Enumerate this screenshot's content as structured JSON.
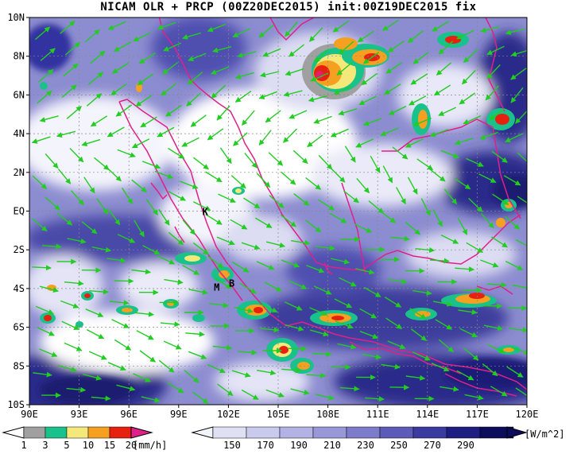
{
  "title": "NICAM OLR + PRCP (00Z20DEC2015) init:00Z19DEC2015 fix",
  "map": {
    "lon_ticks": [
      "90E",
      "93E",
      "96E",
      "99E",
      "102E",
      "105E",
      "108E",
      "111E",
      "114E",
      "117E",
      "120E"
    ],
    "lat_ticks": [
      "10N",
      "8N",
      "6N",
      "4N",
      "2N",
      "EQ",
      "2S",
      "4S",
      "6S",
      "8S",
      "10S"
    ],
    "lon_range": [
      90,
      120
    ],
    "lat_range": [
      -10,
      10
    ],
    "grid": true,
    "place_labels": [
      {
        "text": "K",
        "lon": 100.6,
        "lat": -0.2
      },
      {
        "text": "M",
        "lon": 101.3,
        "lat": -4.1
      },
      {
        "text": "B",
        "lon": 102.2,
        "lat": -3.9
      }
    ],
    "colors": {
      "olr_dark": "#1a1a7a",
      "olr_mid": "#6b6bc0",
      "olr_light": "#c8c8ea",
      "olr_white": "#ffffff",
      "coast": "#e0208a",
      "wind": "#22cc22",
      "rain_gray": "#a0a0a0",
      "rain_green": "#19c28a",
      "rain_yellow": "#f5e87a",
      "rain_orange": "#f5a020",
      "rain_red": "#e82010",
      "rain_magenta": "#e0206a"
    }
  },
  "precip_bar": {
    "labels": [
      "1",
      "3",
      "5",
      "10",
      "15",
      "20"
    ],
    "unit": "[mm/h]",
    "colors": [
      "#a0a0a0",
      "#19c28a",
      "#f5e87a",
      "#f5a020",
      "#e82010",
      "#e0208a"
    ]
  },
  "olr_bar": {
    "labels": [
      "150",
      "170",
      "190",
      "210",
      "230",
      "250",
      "270",
      "290"
    ],
    "unit": "[W/m^2]",
    "colors": [
      "#f4f4fc",
      "#e0e0f4",
      "#cacaee",
      "#b2b2e4",
      "#9898d8",
      "#7c7cca",
      "#5c5cb8",
      "#3a3aa0",
      "#1e1e82",
      "#0c0c5c"
    ]
  }
}
